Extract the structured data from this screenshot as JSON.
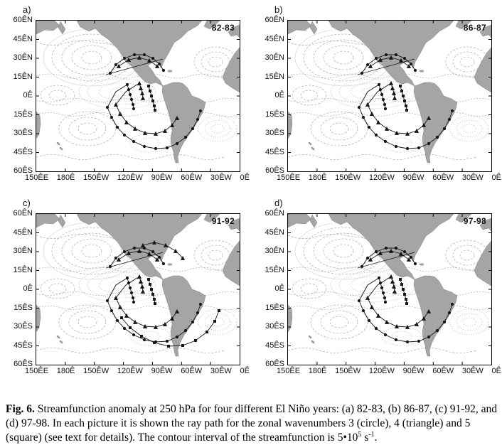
{
  "figure": {
    "panels": [
      {
        "label": "a)",
        "year": "82-83"
      },
      {
        "label": "b)",
        "year": "86-87"
      },
      {
        "label": "c)",
        "year": "91-92"
      },
      {
        "label": "d)",
        "year": "97-98"
      }
    ],
    "y_ticks": [
      "60ÊN",
      "45ÊN",
      "30ÊN",
      "15ÊN",
      "0Ê",
      "15ÊS",
      "30ÊS",
      "45ÊS",
      "60ÊS"
    ],
    "x_ticks": [
      "150ÊE",
      "180Ê",
      "150ÊW",
      "120ÊW",
      "90ÊW",
      "60ÊW",
      "30ÊW",
      "0Ê"
    ],
    "land_color": "#a5a5a5",
    "contour_color": "#8f8f8f",
    "ray_color": "#151515"
  },
  "caption": {
    "label": "Fig. 6.",
    "body1": " Streamfunction anomaly at 250 hPa for four different El Niño years: (a) 82-83, (b) 86-87, (c) 91-92, and (d) 97-98. In each picture it is shown the ray path for the zonal wavenumbers 3 (circle), 4 (triangle) and 5 (square) (see text for details). The contour interval of the streamfunction is  5•10",
    "sup1": "5",
    "body2": " s",
    "sup2": "-1",
    "end": "."
  }
}
